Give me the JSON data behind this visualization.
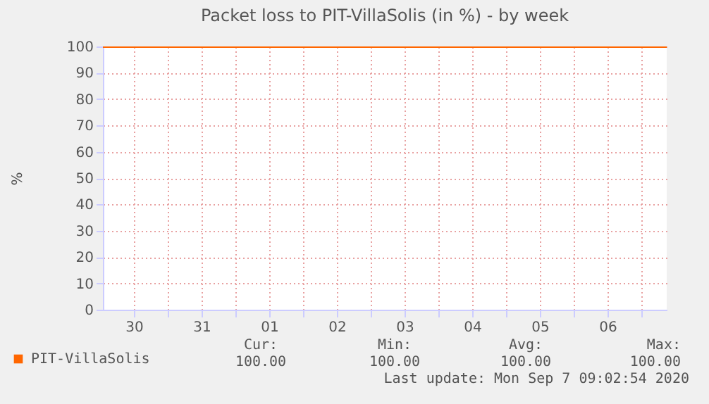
{
  "chart_data": {
    "type": "line",
    "title": "Packet loss to PIT-VillaSolis (in %) - by week",
    "ylabel": "%",
    "x": [
      "2020-08-30T01:00",
      "2020-09-07T09:00"
    ],
    "series": [
      {
        "name": "PIT-VillaSolis",
        "color": "#ff6600",
        "values": [
          100,
          100
        ]
      }
    ],
    "xlim": [
      "2020-08-30T01:00",
      "2020-09-07T09:00"
    ],
    "xticks": [
      {
        "value": "2020-08-30T12:00",
        "label": "30"
      },
      {
        "value": "2020-08-31T12:00",
        "label": "31"
      },
      {
        "value": "2020-09-01T12:00",
        "label": "01"
      },
      {
        "value": "2020-09-02T12:00",
        "label": "02"
      },
      {
        "value": "2020-09-03T12:00",
        "label": "03"
      },
      {
        "value": "2020-09-04T12:00",
        "label": "04"
      },
      {
        "value": "2020-09-05T12:00",
        "label": "05"
      },
      {
        "value": "2020-09-06T12:00",
        "label": "06"
      },
      {
        "value": "2020-08-31T00:00",
        "label": null
      },
      {
        "value": "2020-09-01T00:00",
        "label": null
      },
      {
        "value": "2020-09-02T00:00",
        "label": null
      },
      {
        "value": "2020-09-03T00:00",
        "label": null
      },
      {
        "value": "2020-09-04T00:00",
        "label": null
      },
      {
        "value": "2020-09-05T00:00",
        "label": null
      },
      {
        "value": "2020-09-06T00:00",
        "label": null
      },
      {
        "value": "2020-09-07T00:00",
        "label": null
      }
    ],
    "ylim": [
      0,
      100
    ],
    "yticks": [
      0,
      10,
      20,
      30,
      40,
      50,
      60,
      70,
      80,
      90,
      100
    ],
    "grid": true,
    "legend": "bottom",
    "marker": "none",
    "line_style": "solid",
    "annotations": [
      "Cur:",
      "100.00",
      "Min:",
      "100.00",
      "Avg:",
      "100.00",
      "Max:",
      "100.00",
      "Last update: Mon Sep  7 09:02:54 2020"
    ]
  }
}
